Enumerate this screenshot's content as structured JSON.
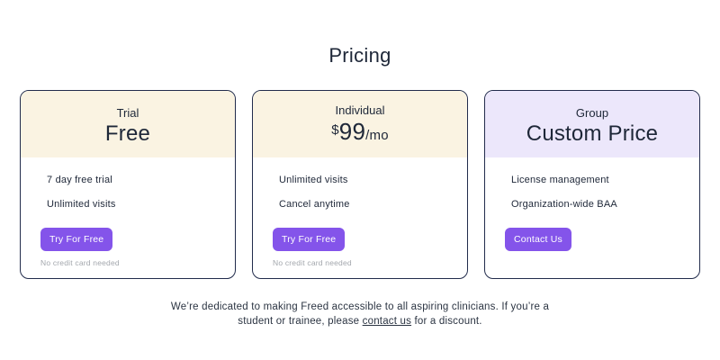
{
  "page_title": "Pricing",
  "colors": {
    "header_cream": "#faf3e2",
    "header_lavender": "#ece7fb",
    "card_border": "#222c4c",
    "button_purple": "#8454ea",
    "text_dark": "#1e2738",
    "fine_print_gray": "#a3a7ad",
    "footer_text": "#2b3442"
  },
  "cards": [
    {
      "tier": "Trial",
      "price": "Free",
      "features": [
        "7 day free trial",
        "Unlimited visits"
      ],
      "button_label": "Try For Free",
      "fine_print": "No credit card needed"
    },
    {
      "tier": "Individual",
      "price": {
        "currency": "$",
        "amount": "99",
        "period": "/mo"
      },
      "features": [
        "Unlimited visits",
        "Cancel anytime"
      ],
      "button_label": "Try For Free",
      "fine_print": "No credit card needed"
    },
    {
      "tier": "Group",
      "price": "Custom Price",
      "features": [
        "License management",
        "Organization-wide BAA"
      ],
      "button_label": "Contact Us"
    }
  ],
  "footer": {
    "line1": "We’re dedicated to making Freed accessible to all aspiring clinicians. If you’re a",
    "line2_pre": "student or trainee, please ",
    "link_label": "contact us",
    "line2_post": " for a discount."
  }
}
